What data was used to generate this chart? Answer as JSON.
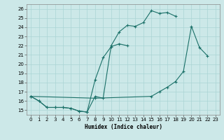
{
  "background_color": "#cce8e8",
  "grid_color": "#aad4d4",
  "line_color": "#1a7068",
  "xlabel": "Humidex (Indice chaleur)",
  "xlim": [
    -0.5,
    23.5
  ],
  "ylim": [
    14.5,
    26.5
  ],
  "xticks": [
    0,
    1,
    2,
    3,
    4,
    5,
    6,
    7,
    8,
    9,
    10,
    11,
    12,
    13,
    14,
    15,
    16,
    17,
    18,
    19,
    20,
    21,
    22,
    23
  ],
  "yticks": [
    15,
    16,
    17,
    18,
    19,
    20,
    21,
    22,
    23,
    24,
    25,
    26
  ],
  "curves": [
    [
      [
        0,
        16.5
      ],
      [
        1,
        16.0
      ],
      [
        2,
        15.3
      ],
      [
        3,
        15.3
      ],
      [
        4,
        15.3
      ],
      [
        5,
        15.2
      ],
      [
        6,
        14.9
      ],
      [
        7,
        14.8
      ],
      [
        8,
        16.5
      ],
      [
        9,
        16.3
      ],
      [
        10,
        22.0
      ],
      [
        11,
        23.5
      ],
      [
        12,
        24.2
      ],
      [
        13,
        24.1
      ],
      [
        14,
        24.5
      ],
      [
        15,
        25.8
      ],
      [
        16,
        25.5
      ],
      [
        17,
        25.6
      ],
      [
        18,
        25.2
      ]
    ],
    [
      [
        0,
        16.5
      ],
      [
        1,
        16.0
      ],
      [
        2,
        15.3
      ],
      [
        3,
        15.3
      ],
      [
        4,
        15.3
      ],
      [
        5,
        15.2
      ],
      [
        6,
        14.9
      ],
      [
        7,
        14.8
      ],
      [
        8,
        18.3
      ],
      [
        9,
        20.7
      ],
      [
        10,
        21.9
      ],
      [
        11,
        22.2
      ],
      [
        12,
        22.0
      ]
    ],
    [
      [
        0,
        16.5
      ],
      [
        8,
        16.3
      ],
      [
        15,
        16.5
      ],
      [
        16,
        17.0
      ],
      [
        17,
        17.5
      ],
      [
        18,
        18.1
      ],
      [
        19,
        19.2
      ],
      [
        20,
        24.1
      ],
      [
        21,
        21.8
      ],
      [
        22,
        20.9
      ]
    ]
  ]
}
